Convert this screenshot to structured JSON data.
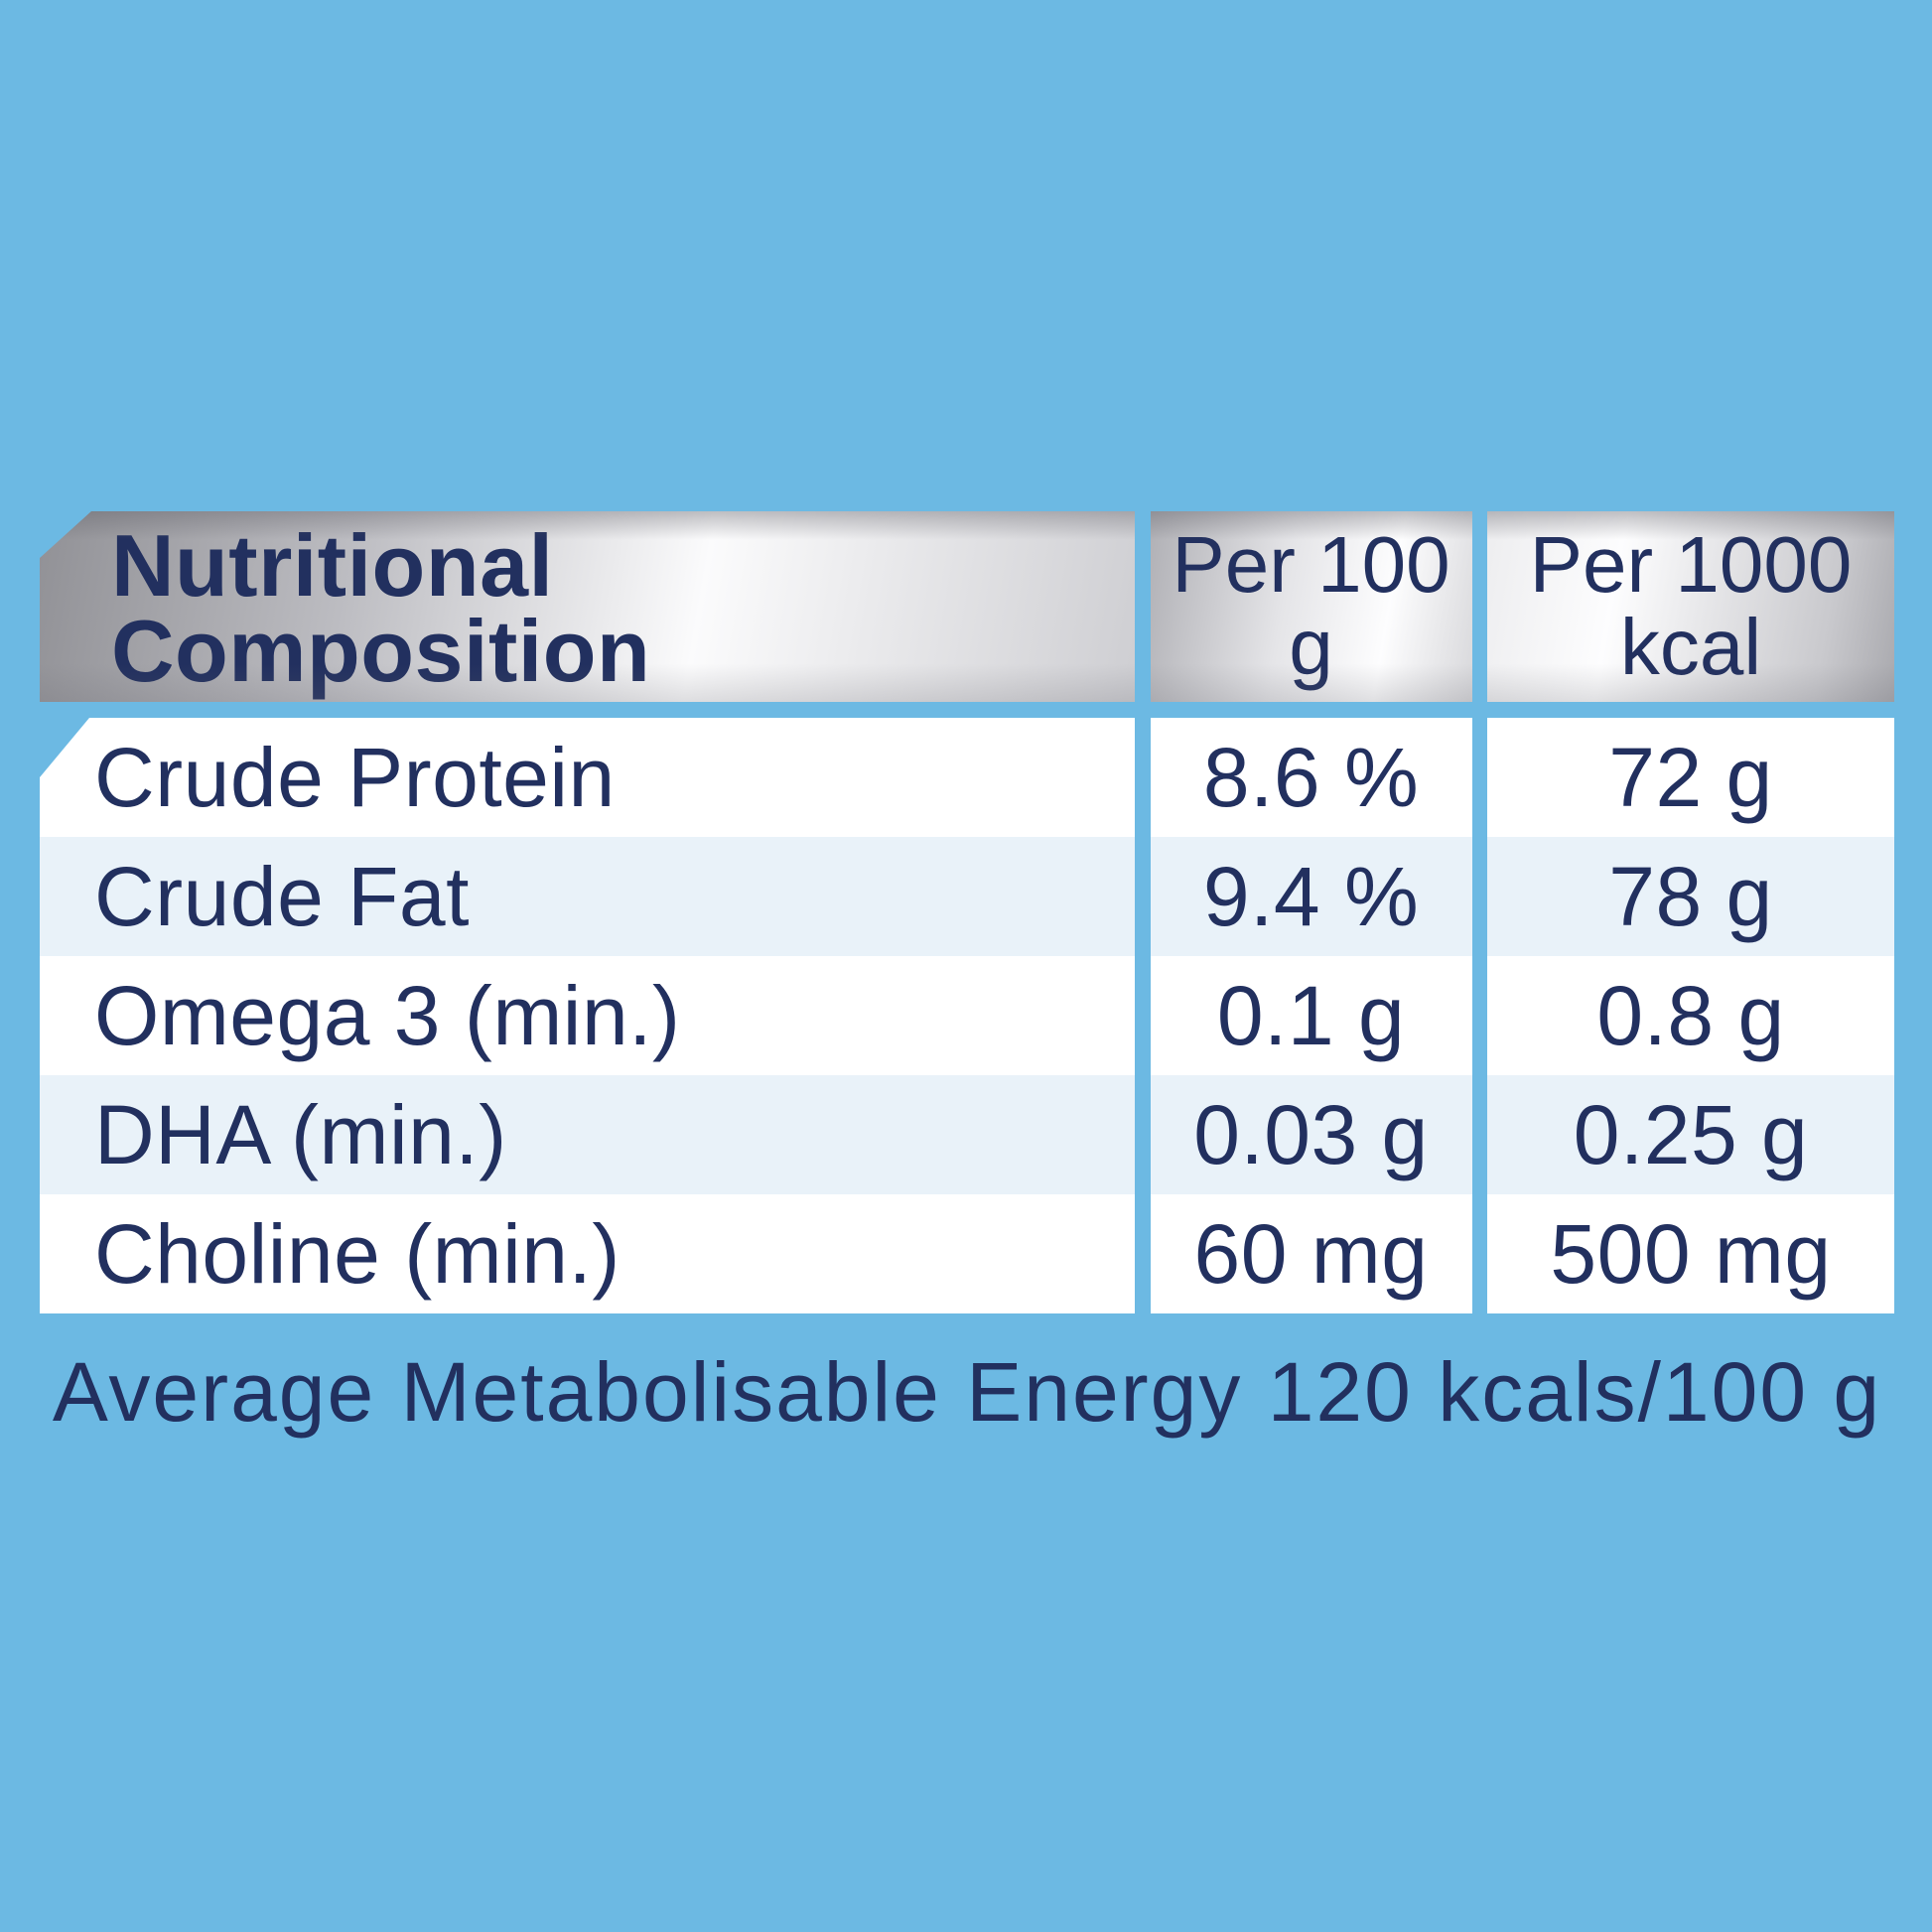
{
  "colors": {
    "background": "#6cb9e3",
    "row_white": "#ffffff",
    "row_alt": "#e9f2f9",
    "text_navy": "#22305f",
    "silver_dark": "#98989d",
    "silver_light": "#fdfdfe"
  },
  "table": {
    "header": {
      "composition_label": "Nutritional Composition",
      "col_per_100g": "Per 100 g",
      "col_per_1000kcal": "Per 1000 kcal"
    },
    "rows": [
      {
        "label": "Crude Protein",
        "per_100g": "8.6 %",
        "per_1000kcal": "72 g"
      },
      {
        "label": "Crude Fat",
        "per_100g": "9.4 %",
        "per_1000kcal": "78 g"
      },
      {
        "label": "Omega 3 (min.)",
        "per_100g": "0.1 g",
        "per_1000kcal": "0.8 g"
      },
      {
        "label": "DHA (min.)",
        "per_100g": "0.03 g",
        "per_1000kcal": "0.25 g"
      },
      {
        "label": "Choline (min.)",
        "per_100g": "60 mg",
        "per_1000kcal": "500 mg"
      }
    ],
    "footer": "Average Metabolisable Energy 120 kcals/100 g"
  }
}
